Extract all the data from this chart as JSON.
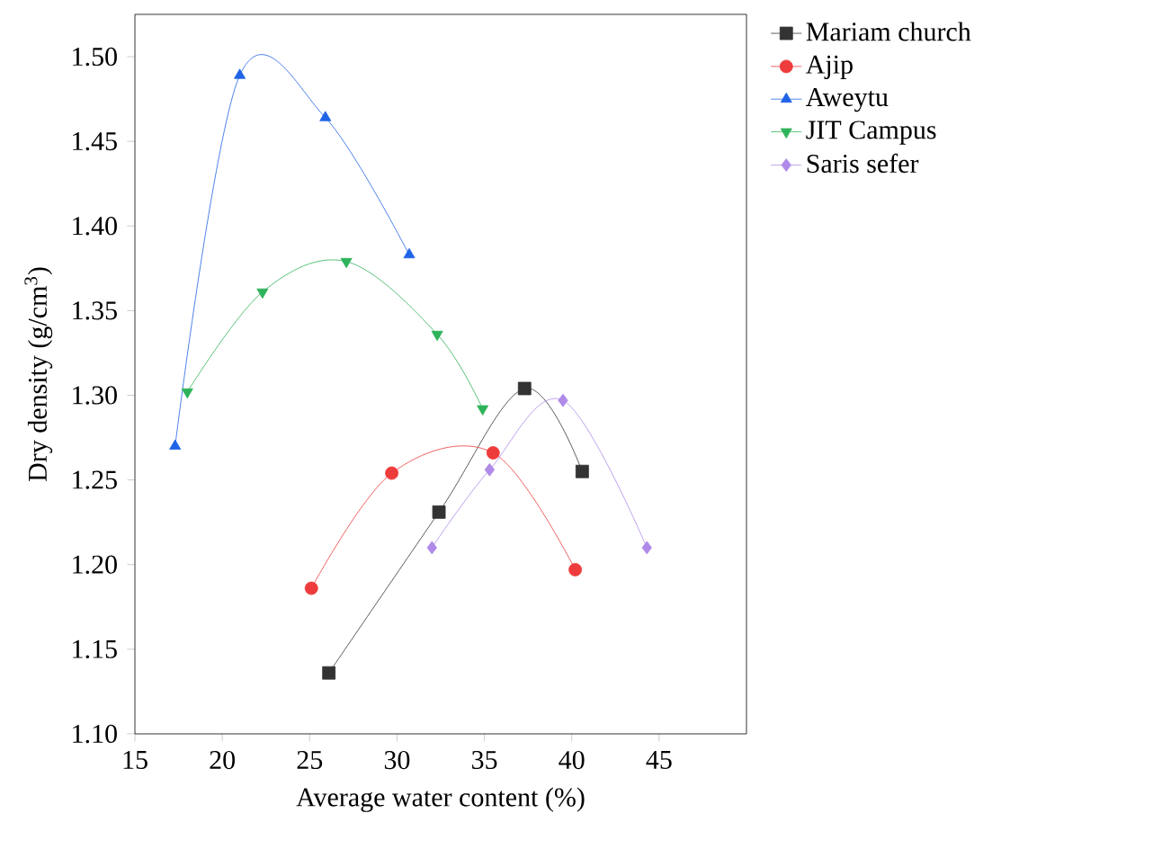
{
  "chart_data": {
    "type": "line",
    "xlabel": "Average water content (%)",
    "ylabel": "Dry density (g/cm$^{3}$)",
    "xlim": [
      15,
      50
    ],
    "xticks": [
      15,
      20,
      25,
      30,
      35,
      40,
      45
    ],
    "ylim": [
      1.1,
      1.525
    ],
    "yticks": [
      {
        "value": 1.1,
        "label": "1.10"
      },
      {
        "value": 1.15,
        "label": "1.15"
      },
      {
        "value": 1.2,
        "label": "1.20"
      },
      {
        "value": 1.25,
        "label": "1.25"
      },
      {
        "value": 1.3,
        "label": "1.30"
      },
      {
        "value": 1.35,
        "label": "1.35"
      },
      {
        "value": 1.4,
        "label": "1.40"
      },
      {
        "value": 1.45,
        "label": "1.45"
      },
      {
        "value": 1.5,
        "label": "1.50"
      }
    ],
    "grid": false,
    "legend": "top right",
    "line_style": "solid",
    "series": [
      {
        "name": "Mariam church",
        "color": "#333333",
        "marker": "square",
        "x": [
          26.1,
          32.4,
          37.3,
          40.6
        ],
        "values": [
          1.136,
          1.231,
          1.304,
          1.255
        ]
      },
      {
        "name": "Ajip",
        "color": "#ee3b3b",
        "marker": "circle",
        "x": [
          25.1,
          29.7,
          35.5,
          40.2
        ],
        "values": [
          1.186,
          1.254,
          1.266,
          1.197
        ]
      },
      {
        "name": "Aweytu",
        "color": "#1f63e6",
        "marker": "triangle",
        "x": [
          17.3,
          21.0,
          25.9,
          30.7
        ],
        "values": [
          1.27,
          1.489,
          1.464,
          1.383
        ]
      },
      {
        "name": "JIT Campus",
        "color": "#2fb35a",
        "marker": "triangle-down",
        "x": [
          18.0,
          22.3,
          27.1,
          32.3,
          34.9
        ],
        "values": [
          1.302,
          1.361,
          1.379,
          1.336,
          1.292
        ]
      },
      {
        "name": "Saris sefer",
        "color": "#b08ae8",
        "marker": "diamond",
        "x": [
          32.0,
          35.3,
          39.5,
          44.3
        ],
        "values": [
          1.21,
          1.256,
          1.297,
          1.21
        ]
      }
    ]
  }
}
